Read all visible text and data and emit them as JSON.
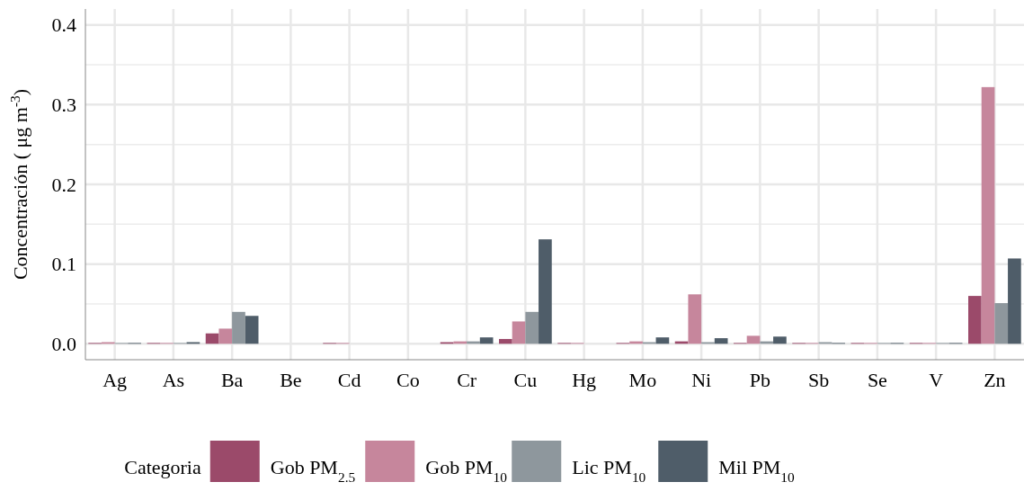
{
  "chart_data": {
    "type": "bar",
    "ylabel": "Concentración ( μg m$^{-3}$)",
    "legend_title": "Categoria",
    "categories": [
      "Ag",
      "As",
      "Ba",
      "Be",
      "Cd",
      "Co",
      "Cr",
      "Cu",
      "Hg",
      "Mo",
      "Ni",
      "Pb",
      "Sb",
      "Se",
      "V",
      "Zn"
    ],
    "series": [
      {
        "name": "Gob PM$_{2.5}$",
        "color": "#9b4a6a",
        "values": [
          0.001,
          0.001,
          0.013,
          0,
          0.001,
          0,
          0.002,
          0.006,
          0.001,
          0.001,
          0.003,
          0.001,
          0.001,
          0.001,
          0.001,
          0.06
        ]
      },
      {
        "name": "Gob PM$_{10}$",
        "color": "#c6869c",
        "values": [
          0.002,
          0.001,
          0.019,
          0,
          0.001,
          0,
          0.003,
          0.028,
          0.001,
          0.003,
          0.062,
          0.01,
          0.001,
          0.001,
          0.001,
          0.322
        ]
      },
      {
        "name": "Lic PM$_{10}$",
        "color": "#8e979d",
        "values": [
          0.001,
          0.001,
          0.04,
          0,
          0,
          0,
          0.003,
          0.04,
          0,
          0.002,
          0.002,
          0.003,
          0.002,
          0.001,
          0.001,
          0.051
        ]
      },
      {
        "name": "Mil PM$_{10}$",
        "color": "#4f5d69",
        "values": [
          0.001,
          0.002,
          0.035,
          0,
          0,
          0,
          0.008,
          0.131,
          0,
          0.008,
          0.007,
          0.009,
          0.001,
          0.001,
          0.001,
          0.107
        ]
      }
    ],
    "ylim": [
      -0.02,
      0.42
    ],
    "yticks": [
      {
        "value": 0,
        "label": "0.0"
      },
      {
        "value": 0.1,
        "label": "0.1"
      },
      {
        "value": 0.2,
        "label": "0.2"
      },
      {
        "value": 0.3,
        "label": "0.3"
      },
      {
        "value": 0.4,
        "label": "0.4"
      }
    ],
    "grid": true,
    "legend": "bottom"
  }
}
